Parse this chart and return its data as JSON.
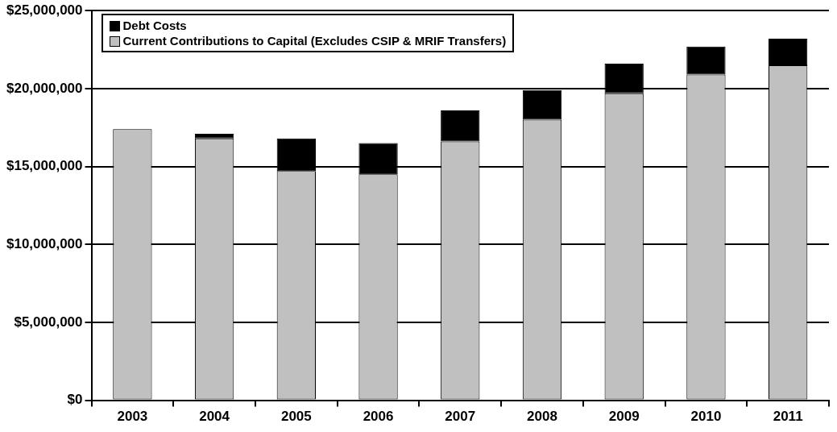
{
  "chart_data": {
    "type": "bar",
    "stacked": true,
    "categories": [
      "2003",
      "2004",
      "2005",
      "2006",
      "2007",
      "2008",
      "2009",
      "2010",
      "2011"
    ],
    "series": [
      {
        "name": "Current Contributions to Capital (Excludes CSIP & MRIF Transfers)",
        "color": "#c0c0c0",
        "values": [
          17400000,
          16800000,
          14700000,
          14500000,
          16600000,
          18000000,
          19700000,
          20900000,
          21500000
        ]
      },
      {
        "name": "Debt Costs",
        "color": "#000000",
        "values": [
          0,
          300000,
          2100000,
          2000000,
          2000000,
          1900000,
          1900000,
          1800000,
          1700000
        ]
      }
    ],
    "ylim": [
      0,
      25000000
    ],
    "yticks": [
      {
        "value": 0,
        "label": "$0"
      },
      {
        "value": 5000000,
        "label": "$5,000,000"
      },
      {
        "value": 10000000,
        "label": "$10,000,000"
      },
      {
        "value": 15000000,
        "label": "$15,000,000"
      },
      {
        "value": 20000000,
        "label": "$20,000,000"
      },
      {
        "value": 25000000,
        "label": "$25,000,000"
      }
    ],
    "grid": "y",
    "legend": "top left"
  }
}
